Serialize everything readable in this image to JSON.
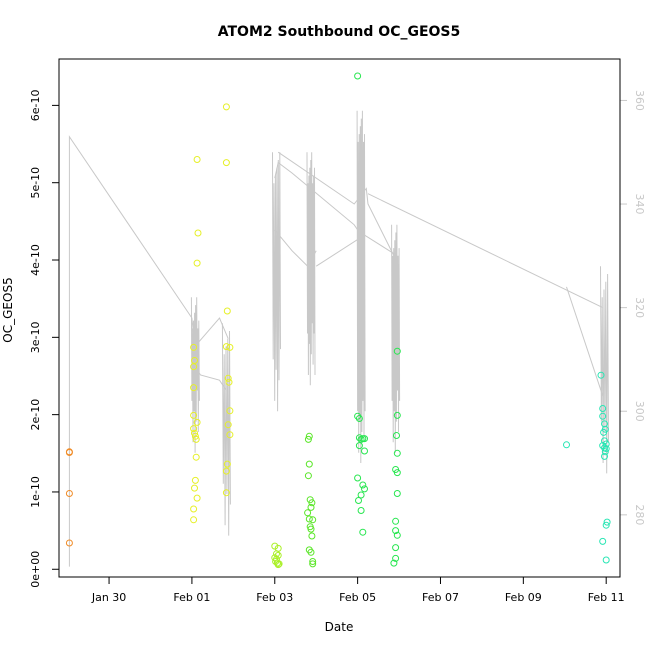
{
  "chart_data": {
    "type": "scatter",
    "title": "ATOM2 Southbound OC_GEOS5",
    "xlabel": "Date",
    "ylabel": "OC_GEOS5",
    "x_axis": {
      "range": [
        "2017-01-28T19:00",
        "2017-02-11T08:00"
      ],
      "ticks": [
        {
          "value": "2017-01-30",
          "label": "Jan 30"
        },
        {
          "value": "2017-02-01",
          "label": "Feb 01"
        },
        {
          "value": "2017-02-03",
          "label": "Feb 03"
        },
        {
          "value": "2017-02-05",
          "label": "Feb 05"
        },
        {
          "value": "2017-02-07",
          "label": "Feb 07"
        },
        {
          "value": "2017-02-09",
          "label": "Feb 09"
        },
        {
          "value": "2017-02-11",
          "label": "Feb 11"
        }
      ]
    },
    "y_axis": {
      "range": [
        -1e-11,
        6.6e-10
      ],
      "ticks": [
        {
          "value": 0,
          "label": "0e+00"
        },
        {
          "value": 1e-10,
          "label": "1e-10"
        },
        {
          "value": 2e-10,
          "label": "2e-10"
        },
        {
          "value": 3e-10,
          "label": "3e-10"
        },
        {
          "value": 4e-10,
          "label": "4e-10"
        },
        {
          "value": 5e-10,
          "label": "5e-10"
        },
        {
          "value": 6e-10,
          "label": "6e-10"
        }
      ]
    },
    "y2_axis": {
      "range": [
        268,
        368
      ],
      "ticks": [
        {
          "value": 280,
          "label": "280"
        },
        {
          "value": 300,
          "label": "300"
        },
        {
          "value": 320,
          "label": "320"
        },
        {
          "value": 340,
          "label": "340"
        },
        {
          "value": 360,
          "label": "360"
        }
      ],
      "color": "#c8c8c8"
    },
    "grid": false,
    "legend": "none",
    "point_colors": {
      "orange": "#f08c28",
      "yellow": "#e6f028",
      "yellow_green": "#aaf028",
      "green": "#5ae628",
      "bright_green": "#28e650",
      "cyan_green": "#28e6b4"
    },
    "line_color": "#c8c8c8",
    "point_groups": [
      {
        "color": "#f08c28",
        "points": [
          [
            "2017-01-29T01:00",
            1.52e-10
          ],
          [
            "2017-01-29T01:00",
            1.51e-10
          ],
          [
            "2017-01-29T01:00",
            9.8e-11
          ],
          [
            "2017-01-29T01:00",
            3.4e-11
          ]
        ]
      },
      {
        "color": "#e6f028",
        "points": [
          [
            "2017-02-01T01:00",
            2.87e-10
          ],
          [
            "2017-02-01T01:30",
            2.7e-10
          ],
          [
            "2017-02-01T01:00",
            2.62e-10
          ],
          [
            "2017-02-01T01:00",
            2.35e-10
          ],
          [
            "2017-02-01T01:00",
            1.99e-10
          ],
          [
            "2017-02-01T01:00",
            1.82e-10
          ],
          [
            "2017-02-01T01:30",
            1.76e-10
          ],
          [
            "2017-02-01T02:00",
            1.72e-10
          ],
          [
            "2017-02-01T02:30",
            1.68e-10
          ],
          [
            "2017-02-01T03:00",
            1.9e-10
          ],
          [
            "2017-02-01T02:30",
            1.45e-10
          ],
          [
            "2017-02-01T02:00",
            1.15e-10
          ],
          [
            "2017-02-01T01:30",
            1.05e-10
          ],
          [
            "2017-02-01T03:00",
            9.2e-11
          ],
          [
            "2017-02-01T01:00",
            7.8e-11
          ],
          [
            "2017-02-01T01:00",
            6.4e-11
          ],
          [
            "2017-02-01T03:00",
            5.3e-10
          ],
          [
            "2017-02-01T03:30",
            4.35e-10
          ],
          [
            "2017-02-01T03:00",
            3.96e-10
          ],
          [
            "2017-02-01T20:00",
            5.98e-10
          ],
          [
            "2017-02-01T20:00",
            5.26e-10
          ],
          [
            "2017-02-01T20:30",
            3.34e-10
          ],
          [
            "2017-02-01T20:00",
            2.88e-10
          ],
          [
            "2017-02-01T22:00",
            2.87e-10
          ],
          [
            "2017-02-01T21:00",
            2.47e-10
          ],
          [
            "2017-02-01T21:30",
            2.42e-10
          ],
          [
            "2017-02-01T22:00",
            2.05e-10
          ],
          [
            "2017-02-01T21:00",
            1.87e-10
          ],
          [
            "2017-02-01T22:00",
            1.74e-10
          ],
          [
            "2017-02-01T20:30",
            1.36e-10
          ],
          [
            "2017-02-01T20:00",
            1.27e-10
          ],
          [
            "2017-02-01T20:00",
            9.9e-11
          ]
        ]
      },
      {
        "color": "#aaf028",
        "points": [
          [
            "2017-02-03T00:00",
            3e-11
          ],
          [
            "2017-02-03T02:00",
            2.7e-11
          ],
          [
            "2017-02-03T01:00",
            2e-11
          ],
          [
            "2017-02-03T02:00",
            1.8e-11
          ],
          [
            "2017-02-03T00:00",
            1.5e-11
          ],
          [
            "2017-02-03T01:00",
            1.3e-11
          ],
          [
            "2017-02-03T00:30",
            1e-11
          ],
          [
            "2017-02-03T01:30",
            8e-12
          ],
          [
            "2017-02-03T02:30",
            7e-12
          ],
          [
            "2017-02-03T02:00",
            6e-12
          ]
        ]
      },
      {
        "color": "#5ae628",
        "points": [
          [
            "2017-02-03T20:00",
            1.72e-10
          ],
          [
            "2017-02-03T19:30",
            1.68e-10
          ],
          [
            "2017-02-03T20:00",
            1.36e-10
          ],
          [
            "2017-02-03T19:30",
            1.21e-10
          ],
          [
            "2017-02-03T20:30",
            9e-11
          ],
          [
            "2017-02-03T21:30",
            8.6e-11
          ],
          [
            "2017-02-03T21:00",
            8e-11
          ],
          [
            "2017-02-03T19:00",
            7.3e-11
          ],
          [
            "2017-02-03T20:00",
            6.5e-11
          ],
          [
            "2017-02-03T22:00",
            6.4e-11
          ],
          [
            "2017-02-03T20:30",
            5.5e-11
          ],
          [
            "2017-02-03T21:00",
            5.2e-11
          ],
          [
            "2017-02-03T21:30",
            4.3e-11
          ],
          [
            "2017-02-03T20:00",
            2.5e-11
          ],
          [
            "2017-02-03T21:00",
            2.2e-11
          ],
          [
            "2017-02-03T22:00",
            1e-11
          ],
          [
            "2017-02-03T22:00",
            7e-12
          ]
        ]
      },
      {
        "color": "#28e650",
        "points": [
          [
            "2017-02-05T00:00",
            6.38e-10
          ],
          [
            "2017-02-05T00:00",
            1.98e-10
          ],
          [
            "2017-02-05T01:00",
            1.95e-10
          ],
          [
            "2017-02-05T01:00",
            1.7e-10
          ],
          [
            "2017-02-05T02:00",
            1.68e-10
          ],
          [
            "2017-02-05T03:00",
            1.69e-10
          ],
          [
            "2017-02-05T04:00",
            1.69e-10
          ],
          [
            "2017-02-05T01:00",
            1.6e-10
          ],
          [
            "2017-02-05T04:00",
            1.53e-10
          ],
          [
            "2017-02-05T00:00",
            1.18e-10
          ],
          [
            "2017-02-05T03:00",
            1.09e-10
          ],
          [
            "2017-02-05T04:00",
            1.04e-10
          ],
          [
            "2017-02-05T02:00",
            9.6e-11
          ],
          [
            "2017-02-05T00:30",
            8.9e-11
          ],
          [
            "2017-02-05T02:00",
            7.6e-11
          ],
          [
            "2017-02-05T03:00",
            4.8e-11
          ],
          [
            "2017-02-05T23:00",
            2.82e-10
          ],
          [
            "2017-02-05T23:00",
            1.99e-10
          ],
          [
            "2017-02-05T22:30",
            1.73e-10
          ],
          [
            "2017-02-05T23:00",
            1.5e-10
          ],
          [
            "2017-02-05T22:00",
            1.29e-10
          ],
          [
            "2017-02-05T23:00",
            1.25e-10
          ],
          [
            "2017-02-05T23:00",
            9.8e-11
          ],
          [
            "2017-02-05T22:00",
            6.2e-11
          ],
          [
            "2017-02-05T22:00",
            5e-11
          ],
          [
            "2017-02-05T23:00",
            4.4e-11
          ],
          [
            "2017-02-05T22:00",
            2.8e-11
          ],
          [
            "2017-02-05T22:00",
            1.4e-11
          ],
          [
            "2017-02-05T21:00",
            8e-12
          ]
        ]
      },
      {
        "color": "#28e6b4",
        "points": [
          [
            "2017-02-10T01:00",
            1.61e-10
          ],
          [
            "2017-02-10T21:00",
            2.51e-10
          ],
          [
            "2017-02-10T22:00",
            2.08e-10
          ],
          [
            "2017-02-10T22:00",
            1.98e-10
          ],
          [
            "2017-02-10T23:00",
            1.88e-10
          ],
          [
            "2017-02-10T23:30",
            1.81e-10
          ],
          [
            "2017-02-10T22:30",
            1.77e-10
          ],
          [
            "2017-02-10T23:00",
            1.66e-10
          ],
          [
            "2017-02-11T00:00",
            1.62e-10
          ],
          [
            "2017-02-10T22:00",
            1.6e-10
          ],
          [
            "2017-02-10T23:00",
            1.57e-10
          ],
          [
            "2017-02-11T00:00",
            1.56e-10
          ],
          [
            "2017-02-10T23:30",
            1.52e-10
          ],
          [
            "2017-02-10T23:00",
            1.46e-10
          ],
          [
            "2017-02-11T00:30",
            6.1e-11
          ],
          [
            "2017-02-11T00:00",
            5.7e-11
          ],
          [
            "2017-02-10T22:00",
            3.6e-11
          ],
          [
            "2017-02-11T00:00",
            1.2e-11
          ]
        ]
      }
    ],
    "secondary_series": {
      "axis": "right",
      "segments": [
        [
          [
            "2017-01-29T01:00",
            270
          ],
          [
            "2017-01-29T01:00",
            353
          ],
          [
            "2017-02-01T00:00",
            318
          ],
          [
            "2017-02-01T03:00",
            308
          ],
          [
            "2017-02-01T05:00",
            307
          ],
          [
            "2017-02-01T16:00",
            306
          ],
          [
            "2017-02-01T20:00",
            304
          ]
        ],
        [
          [
            "2017-02-01T03:00",
            313
          ],
          [
            "2017-02-01T16:00",
            318
          ],
          [
            "2017-02-01T21:00",
            314
          ]
        ],
        [
          [
            "2017-02-03T00:00",
            335
          ],
          [
            "2017-02-03T10:00",
            331
          ],
          [
            "2017-02-03T19:00",
            328
          ],
          [
            "2017-02-04T00:00",
            331
          ]
        ],
        [
          [
            "2017-02-03T00:00",
            345
          ],
          [
            "2017-02-03T02:00",
            348
          ],
          [
            "2017-02-03T10:00",
            346
          ],
          [
            "2017-02-04T22:00",
            336
          ],
          [
            "2017-02-05T00:00",
            335
          ]
        ],
        [
          [
            "2017-02-03T02:00",
            350
          ],
          [
            "2017-02-04T22:00",
            340
          ],
          [
            "2017-02-05T05:00",
            343
          ],
          [
            "2017-02-05T06:00",
            340
          ],
          [
            "2017-02-06T00:00",
            328
          ]
        ],
        [
          [
            "2017-02-04T00:00",
            328
          ],
          [
            "2017-02-05T04:00",
            334
          ],
          [
            "2017-02-05T23:00",
            330
          ]
        ],
        [
          [
            "2017-02-05T06:00",
            342
          ],
          [
            "2017-02-10T22:00",
            320
          ]
        ],
        [
          [
            "2017-02-10T01:00",
            324
          ],
          [
            "2017-02-10T22:00",
            303
          ]
        ]
      ],
      "bursts": [
        {
          "x": "2017-02-01T02:00",
          "hi": 322,
          "lo": 292,
          "count": 16
        },
        {
          "x": "2017-02-01T20:00",
          "hi": 317,
          "lo": 276,
          "count": 10
        },
        {
          "x": "2017-02-03T01:00",
          "hi": 350,
          "lo": 300,
          "count": 12
        },
        {
          "x": "2017-02-03T21:00",
          "hi": 350,
          "lo": 305,
          "count": 18
        },
        {
          "x": "2017-02-05T02:00",
          "hi": 358,
          "lo": 290,
          "count": 16
        },
        {
          "x": "2017-02-05T22:00",
          "hi": 336,
          "lo": 292,
          "count": 16
        },
        {
          "x": "2017-02-10T23:00",
          "hi": 328,
          "lo": 288,
          "count": 10
        }
      ]
    }
  }
}
